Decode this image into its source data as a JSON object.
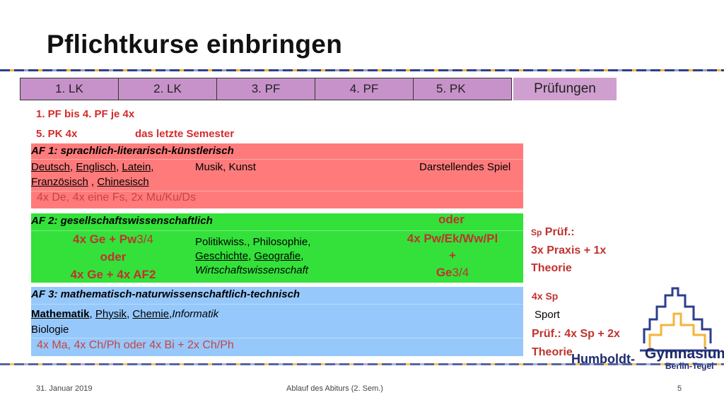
{
  "slide": {
    "title": "Pflichtkurse einbringen",
    "header_cells": [
      "1. LK",
      "2. LK",
      "3. PF",
      "4. PF",
      "5. PK"
    ],
    "pruefungen": "Prüfungen",
    "rule1": "1. PF bis 4. PF je 4x",
    "rule2_a": "5. PK 4x",
    "rule2_b": "das letzte Semester"
  },
  "af1": {
    "heading": "AF 1: sprachlich-literarisch-künstlerisch",
    "deutsch": "Deutsch",
    "englisch": "Englisch",
    "latein": "Latein",
    "franzoesisch": "Französisch",
    "chinesisch": "Chinesisch",
    "comma": ",",
    "comma_space": " ,",
    "musik": "Musik, Kunst",
    "darstellendes": "Darstellendes Spiel",
    "summary": "4x De, 4x eine Fs, 2x Mu/Ku/Ds"
  },
  "af2": {
    "heading": "AF 2: gesellschaftswissenschaftlich",
    "opt1_line1_a": "4x Ge + Pw",
    "opt1_line1_b": "3/4",
    "opt_oder": "oder",
    "opt1_line3": "4x Ge + 4x AF2",
    "politik": "Politikwiss., Philosophie,",
    "geschichte": "Geschichte",
    "geografie": "Geografie",
    "comma": ",",
    "wirtschaft": "Wirtschaftswissenschaft",
    "right_oder": "oder",
    "right_line1": "4x Pw/Ek/Ww/Pl",
    "right_plus": "+",
    "right_line3_a": "Ge",
    "right_line3_b": "3/4"
  },
  "af3": {
    "heading": "AF 3: mathematisch-naturwissenschaftlich-technisch",
    "mathematik": "Mathematik",
    "physik": "Physik",
    "chemie": "Chemie",
    "informatik": "Informatik",
    "biologie": "Biologie",
    "comma": ",",
    "summary": "4x Ma, 4x Ch/Ph oder 4x Bi + 2x Ch/Ph"
  },
  "sport": {
    "sp_small": "Sp",
    "pruef1": "Prüf.:",
    "pruef2": "3x Praxis + 1x",
    "pruef3": "Theorie",
    "four_sp": "4x Sp",
    "sport_label": "Sport",
    "pruef4": "Prüf.: 4x Sp + 2x",
    "pruef5": "Theorie"
  },
  "logo": {
    "word1": "Humboldt-",
    "word2": "Gymnasium",
    "word3": "Berlin-Tegel"
  },
  "footer": {
    "date": "31. Januar 2019",
    "center": "Ablauf des Abiturs (2. Sem.)",
    "page": "5"
  },
  "colors": {
    "af1": "#ff7b7b",
    "af2": "#33e13a",
    "af3": "#96c8fb",
    "header": "#c792c9",
    "accent_red": "#d42b2b"
  }
}
